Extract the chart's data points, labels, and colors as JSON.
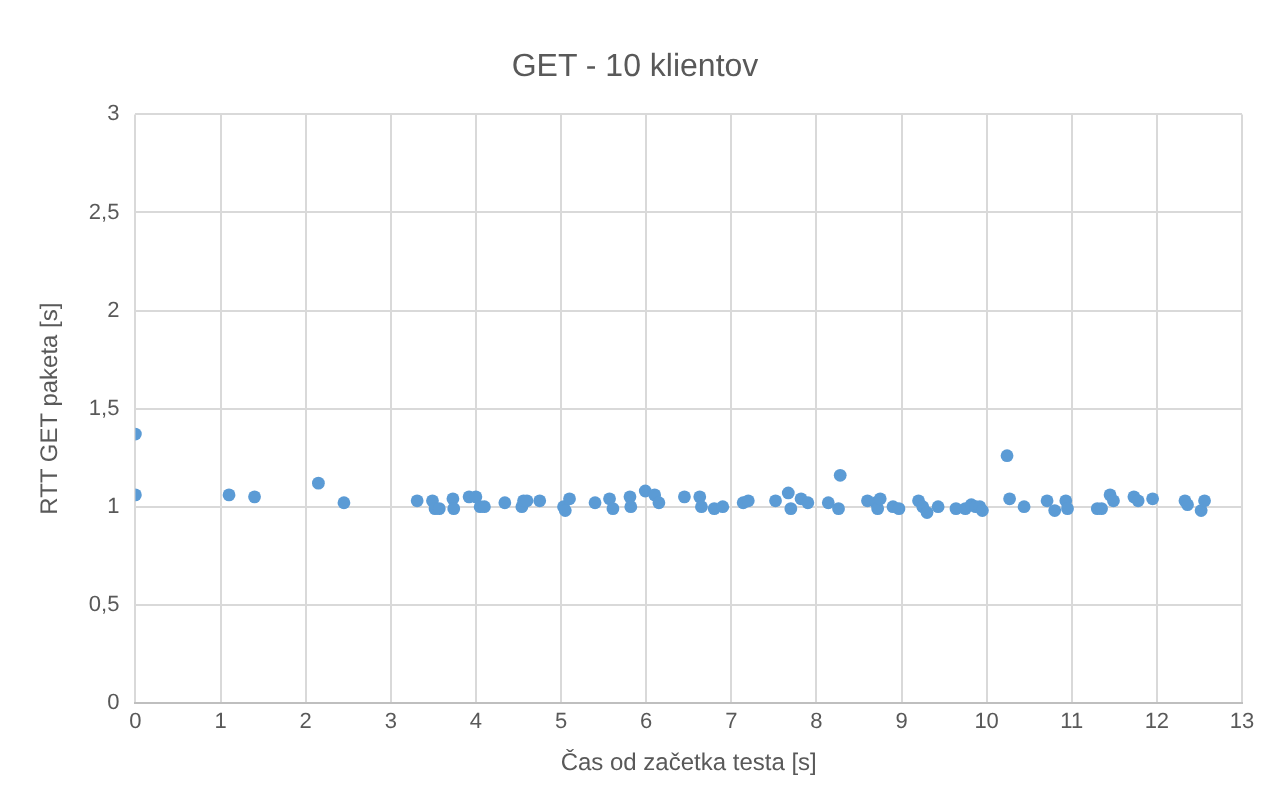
{
  "chart_data": {
    "type": "scatter",
    "title": "GET - 10 klientov",
    "xlabel": "Čas od začetka testa [s]",
    "ylabel": "RTT GET paketa [s]",
    "series": [
      {
        "color": "#5b9bd5",
        "x": [
          0,
          0,
          1.1,
          1.4,
          2.15,
          2.45,
          3.31,
          3.49,
          3.52,
          3.57,
          3.73,
          3.74,
          3.92,
          4.0,
          4.05,
          4.1,
          4.34,
          4.54,
          4.56,
          4.6,
          4.75,
          5.03,
          5.05,
          5.1,
          5.4,
          5.57,
          5.61,
          5.81,
          5.82,
          5.99,
          6.1,
          6.15,
          6.45,
          6.63,
          6.65,
          6.8,
          6.9,
          7.14,
          7.2,
          7.52,
          7.67,
          7.7,
          7.82,
          7.9,
          8.14,
          8.26,
          8.28,
          8.6,
          8.7,
          8.72,
          8.75,
          8.9,
          8.97,
          9.2,
          9.25,
          9.3,
          9.43,
          9.64,
          9.75,
          9.82,
          9.87,
          9.92,
          9.95,
          10.24,
          10.27,
          10.44,
          10.71,
          10.8,
          10.93,
          10.95,
          11.3,
          11.35,
          11.45,
          11.49,
          11.73,
          11.78,
          11.95,
          12.33,
          12.36,
          12.52,
          12.56
        ],
        "values": [
          1.37,
          1.06,
          1.06,
          1.05,
          1.12,
          1.02,
          1.03,
          1.03,
          0.99,
          0.99,
          1.04,
          0.99,
          1.05,
          1.05,
          1.0,
          1.0,
          1.02,
          1.0,
          1.03,
          1.03,
          1.03,
          1.0,
          0.98,
          1.04,
          1.02,
          1.04,
          0.99,
          1.05,
          1.0,
          1.08,
          1.06,
          1.02,
          1.05,
          1.05,
          1.0,
          0.99,
          1.0,
          1.02,
          1.03,
          1.03,
          1.07,
          0.99,
          1.04,
          1.02,
          1.02,
          0.99,
          1.16,
          1.03,
          1.02,
          0.99,
          1.04,
          1.0,
          0.99,
          1.03,
          1.0,
          0.97,
          1.0,
          0.99,
          0.99,
          1.01,
          1.0,
          1.0,
          0.98,
          1.26,
          1.04,
          1.0,
          1.03,
          0.98,
          1.03,
          0.99,
          0.99,
          0.99,
          1.06,
          1.03,
          1.05,
          1.03,
          1.04,
          1.03,
          1.01,
          0.98,
          1.03
        ]
      }
    ],
    "xlim": [
      0,
      13
    ],
    "xticks": [
      0,
      1,
      2,
      3,
      4,
      5,
      6,
      7,
      8,
      9,
      10,
      11,
      12,
      13
    ],
    "ylim": [
      0,
      3
    ],
    "yticks": [
      0,
      {
        "value": 0.5,
        "label": "0,5"
      },
      1,
      {
        "value": 1.5,
        "label": "1,5"
      },
      2,
      {
        "value": 2.5,
        "label": "2,5"
      },
      3
    ],
    "grid": true,
    "marker": "circle",
    "legend": false
  }
}
